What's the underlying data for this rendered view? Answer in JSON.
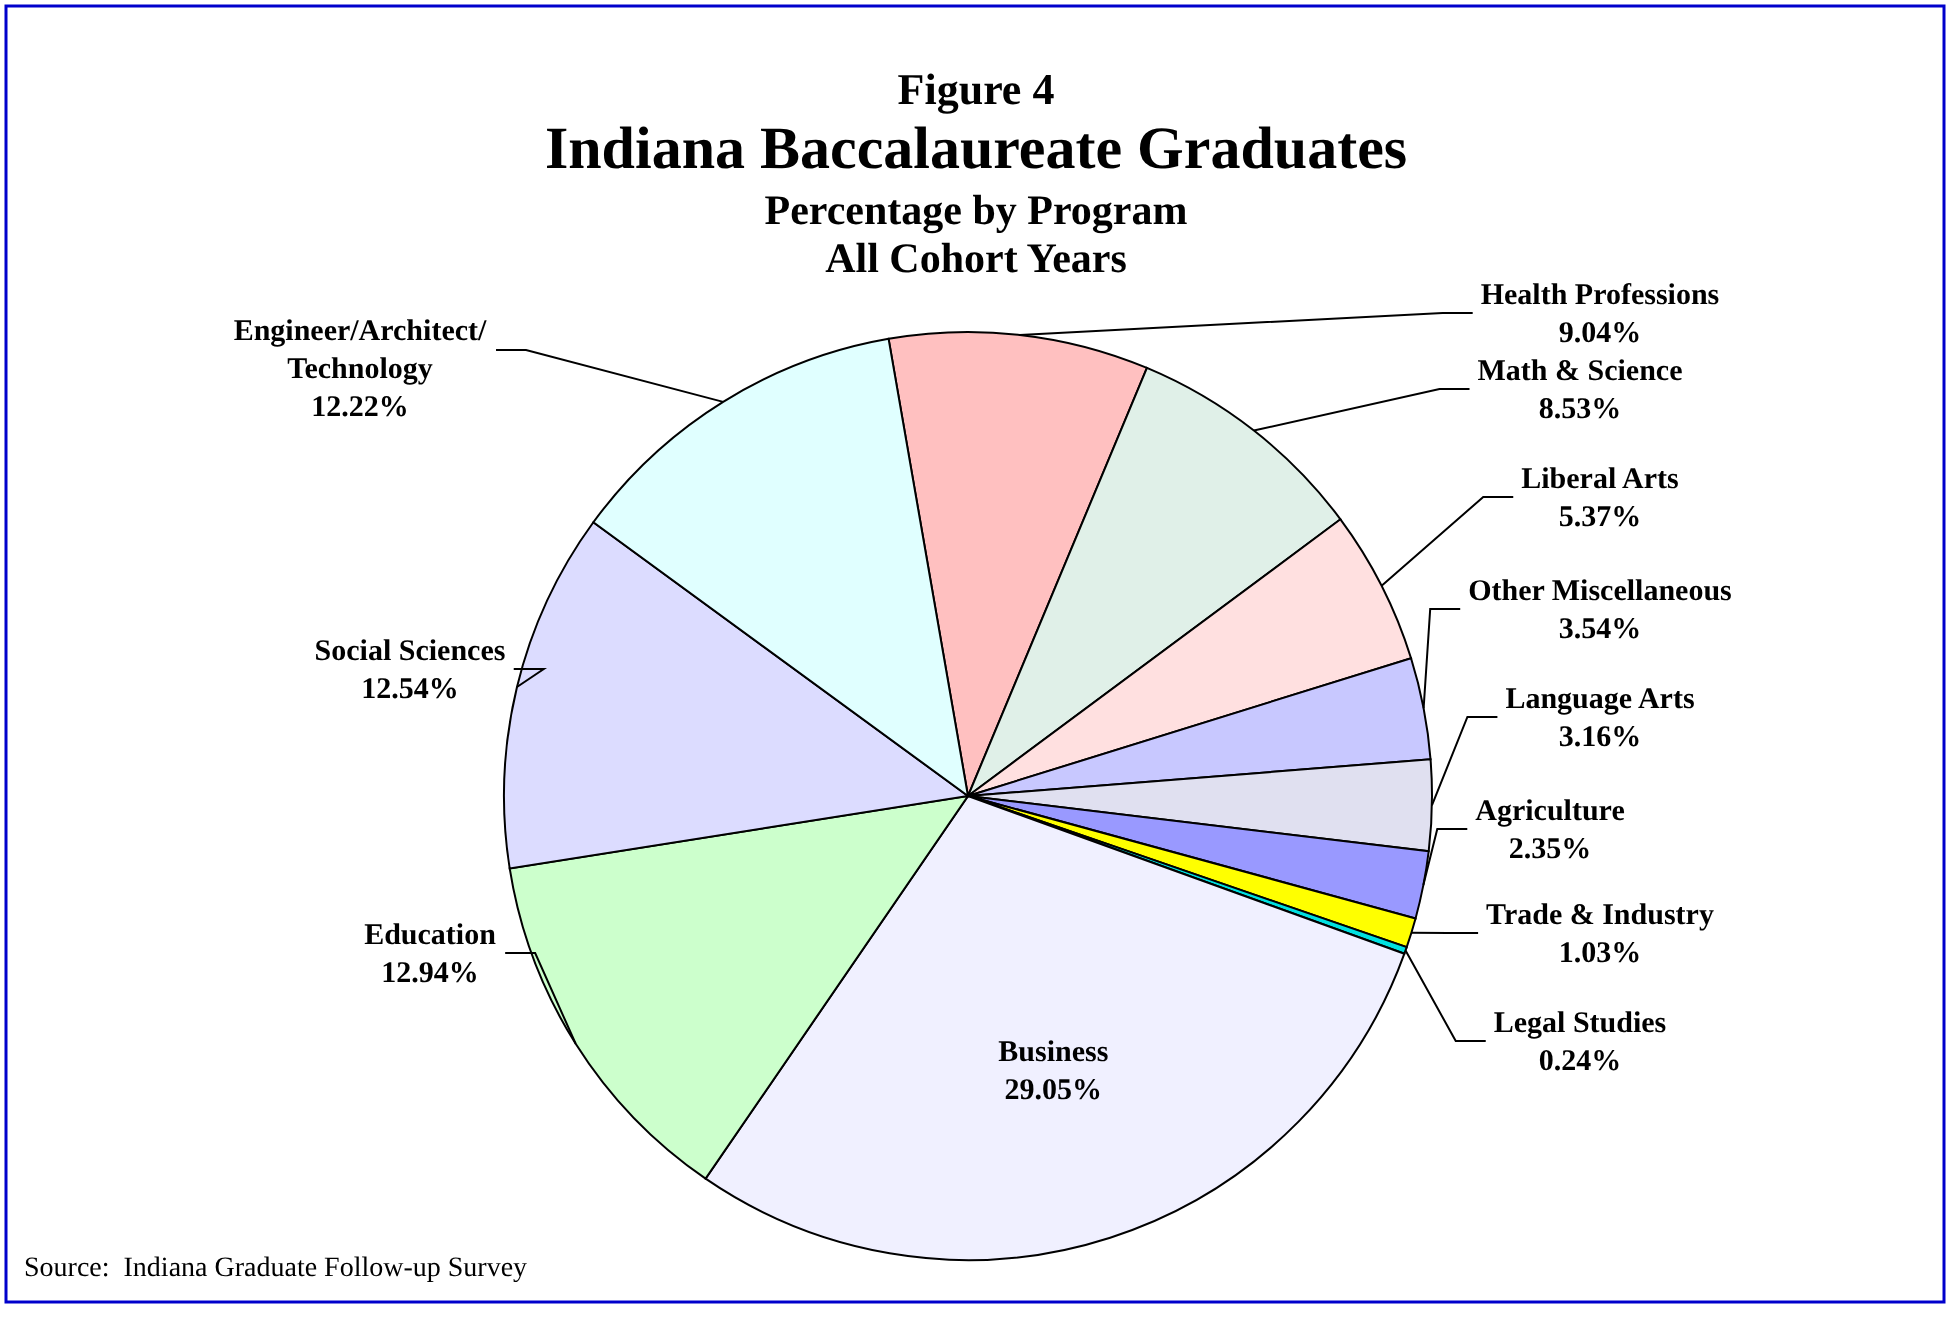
{
  "chart_data": {
    "type": "pie",
    "title": "Indiana Baccalaureate Graduates",
    "subtitle": "Percentage by Program\nAll Cohort Years",
    "annotations": [
      "Figure 4",
      "Source:  Indiana Graduate Follow-up Survey"
    ],
    "categories": [
      "Health Professions",
      "Math & Science",
      "Liberal Arts",
      "Other Miscellaneous",
      "Language Arts",
      "Agriculture",
      "Trade & Industry",
      "Legal Studies",
      "Business",
      "Education",
      "Social Sciences",
      "Engineer/Architect/Technology"
    ],
    "values": [
      9.04,
      8.53,
      5.37,
      3.54,
      3.16,
      2.35,
      1.03,
      0.24,
      29.05,
      12.94,
      12.54,
      12.22
    ],
    "value_labels": [
      "9.04%",
      "8.53%",
      "5.37%",
      "3.54%",
      "3.16%",
      "2.35%",
      "1.03%",
      "0.24%",
      "29.05%",
      "12.94%",
      "12.54%",
      "12.22%"
    ],
    "colors": [
      "#ffc0c0",
      "#e0f0e8",
      "#ffe0e0",
      "#c8c8ff",
      "#e0e0f0",
      "#9999ff",
      "#ffff00",
      "#00e0e0",
      "#f0f0ff",
      "#ccffcc",
      "#dcdcff",
      "#e0ffff"
    ]
  }
}
